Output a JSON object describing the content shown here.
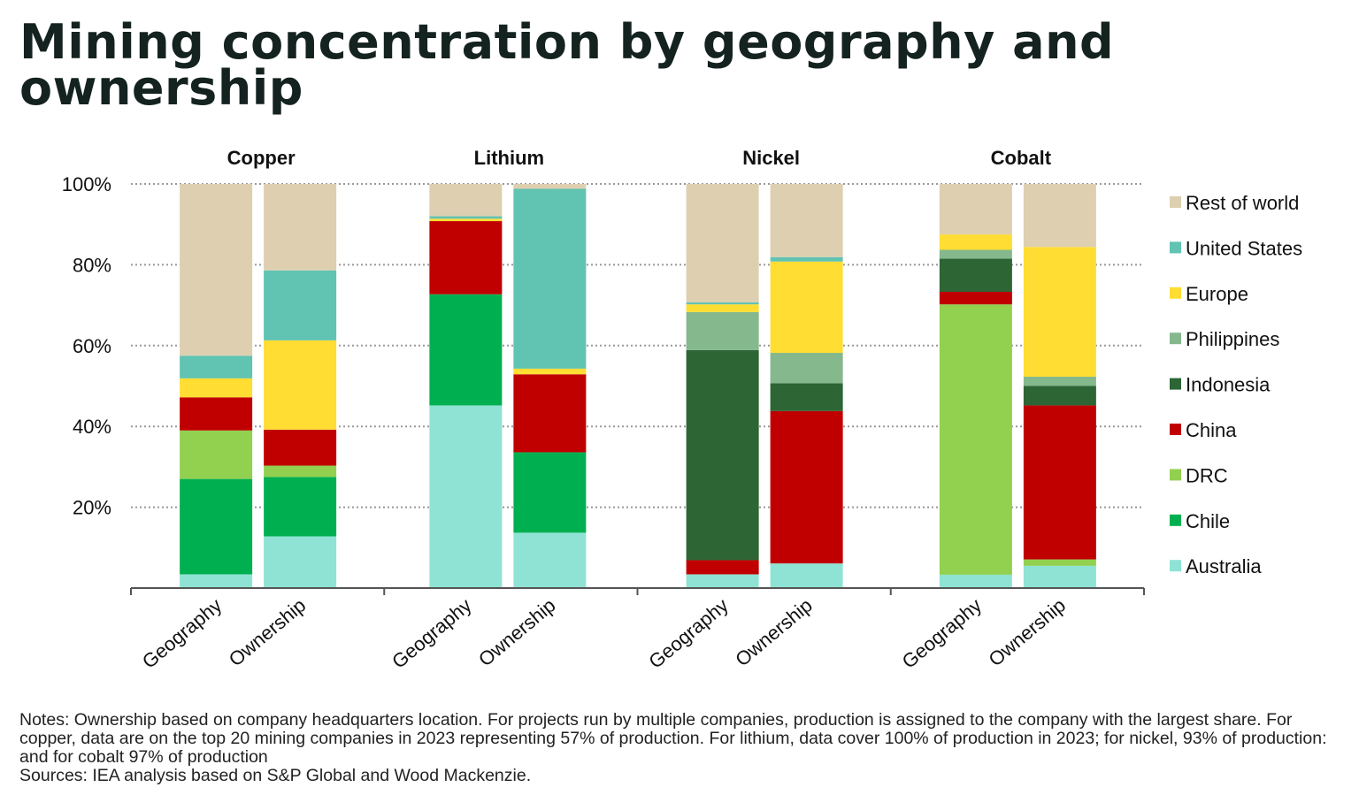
{
  "title": "Mining concentration by geography and ownership",
  "chart_data": {
    "type": "bar",
    "stacked": true,
    "ylim": [
      0,
      100
    ],
    "yticks": [
      "20%",
      "40%",
      "60%",
      "80%",
      "100%"
    ],
    "ytick_values": [
      20,
      40,
      60,
      80,
      100
    ],
    "grid": true,
    "legend_position": "right",
    "groups": [
      "Copper",
      "Lithium",
      "Nickel",
      "Cobalt"
    ],
    "categories": [
      "Geography",
      "Ownership"
    ],
    "series": [
      {
        "name": "Australia",
        "color": "#8fe3d4",
        "values": [
          [
            3.4,
            12.8
          ],
          [
            45.2,
            13.7
          ],
          [
            3.4,
            6.1
          ],
          [
            3.3,
            5.5
          ]
        ]
      },
      {
        "name": "Chile",
        "color": "#00b050",
        "values": [
          [
            23.6,
            14.7
          ],
          [
            27.5,
            19.9
          ],
          [
            0,
            0
          ],
          [
            0,
            0
          ]
        ]
      },
      {
        "name": "DRC",
        "color": "#92d050",
        "values": [
          [
            12.0,
            2.8
          ],
          [
            0,
            0
          ],
          [
            0,
            0
          ],
          [
            66.9,
            1.6
          ]
        ]
      },
      {
        "name": "China",
        "color": "#c00000",
        "values": [
          [
            8.2,
            8.9
          ],
          [
            18.1,
            19.3
          ],
          [
            3.5,
            37.7
          ],
          [
            3.1,
            38.1
          ]
        ]
      },
      {
        "name": "Indonesia",
        "color": "#2d6535",
        "values": [
          [
            0,
            0
          ],
          [
            0,
            0
          ],
          [
            52.0,
            6.9
          ],
          [
            8.2,
            4.8
          ]
        ]
      },
      {
        "name": "Philippines",
        "color": "#85b88d",
        "values": [
          [
            0,
            0
          ],
          [
            0,
            0
          ],
          [
            9.4,
            7.5
          ],
          [
            2.2,
            2.3
          ]
        ]
      },
      {
        "name": "Europe",
        "color": "#ffdd33",
        "values": [
          [
            4.7,
            22.1
          ],
          [
            0.6,
            1.4
          ],
          [
            1.9,
            22.6
          ],
          [
            3.8,
            32.1
          ]
        ]
      },
      {
        "name": "United States",
        "color": "#61c3b2",
        "values": [
          [
            5.6,
            17.3
          ],
          [
            0.6,
            44.5
          ],
          [
            0.5,
            1.1
          ],
          [
            0,
            0
          ]
        ]
      },
      {
        "name": "Rest of world",
        "color": "#ddcfb0",
        "values": [
          [
            42.5,
            21.4
          ],
          [
            8.0,
            1.2
          ],
          [
            29.3,
            18.1
          ],
          [
            12.5,
            15.6
          ]
        ]
      }
    ]
  },
  "notes": "Notes: Ownership based on company headquarters location. For projects run by multiple companies, production is assigned to the company with the largest share. For copper, data are on the top 20 mining companies in 2023 representing 57% of production. For lithium, data cover 100% of production in 2023; for nickel, 93% of production: and for cobalt 97% of production",
  "sources": "Sources: IEA analysis based on S&P Global and Wood Mackenzie."
}
